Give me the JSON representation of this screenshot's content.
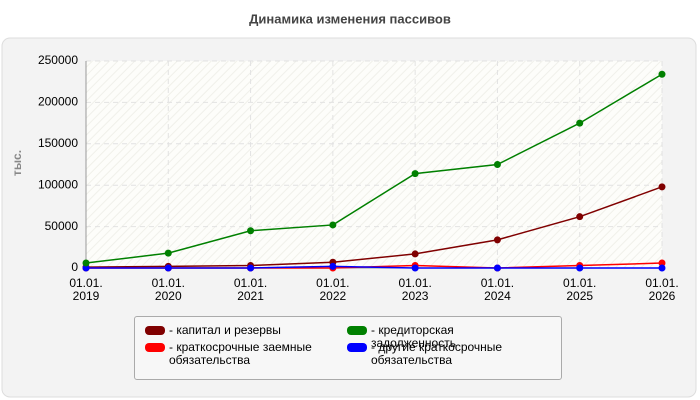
{
  "chart_data": {
    "type": "line",
    "title": "Динамика изменения пассивов",
    "y_label": "тыс.",
    "categories": [
      "01.01. 2019",
      "01.01. 2020",
      "01.01. 2021",
      "01.01. 2022",
      "01.01. 2023",
      "01.01. 2024",
      "01.01. 2025",
      "01.01. 2026"
    ],
    "series": [
      {
        "name": "- капитал и резервы",
        "color": "#800000",
        "values": [
          1000,
          2000,
          3000,
          7000,
          17000,
          34000,
          62000,
          98000
        ]
      },
      {
        "name": "- кредиторская задолженность",
        "color": "#008000",
        "values": [
          6000,
          18000,
          45000,
          52000,
          114000,
          125000,
          175000,
          234000
        ]
      },
      {
        "name": "- краткосрочные заемные обязательства",
        "color": "#ff0000",
        "values": [
          0,
          0,
          0,
          0,
          3000,
          0,
          3000,
          6000
        ]
      },
      {
        "name": "- другие краткосрочные обязательства",
        "color": "#0000ff",
        "values": [
          0,
          0,
          0,
          2000,
          0,
          0,
          0,
          0
        ]
      }
    ],
    "ylim": [
      0,
      250000
    ],
    "yticks": [
      0,
      50000,
      100000,
      150000,
      200000,
      250000
    ],
    "grid": true
  }
}
